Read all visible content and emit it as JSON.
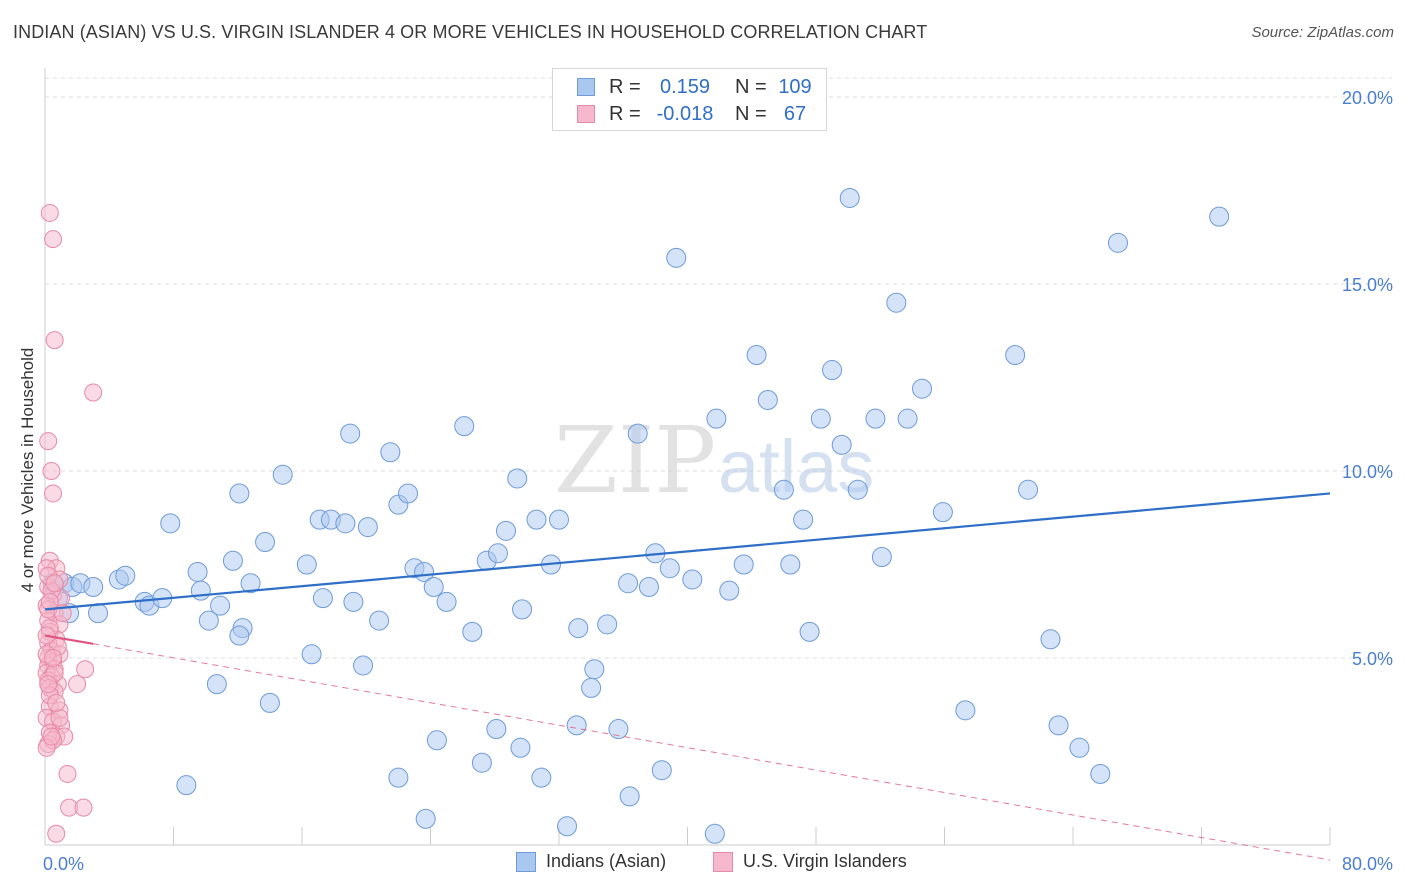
{
  "title": "INDIAN (ASIAN) VS U.S. VIRGIN ISLANDER 4 OR MORE VEHICLES IN HOUSEHOLD CORRELATION CHART",
  "source": "Source: ZipAtlas.com",
  "watermark": {
    "zip": "ZIP",
    "atlas": "atlas"
  },
  "legend": {
    "rows": [
      {
        "r_label": "R =",
        "r_value": "0.159",
        "n_label": "N =",
        "n_value": "109",
        "color": "#a9c7ef",
        "border": "#6f9bd8"
      },
      {
        "r_label": "R =",
        "r_value": "-0.018",
        "n_label": "N =",
        "n_value": "67",
        "color": "#f6b8cc",
        "border": "#e78aa6"
      }
    ]
  },
  "bottom_legend": [
    {
      "label": "Indians (Asian)",
      "color": "#a9c7ef",
      "border": "#6f9bd8"
    },
    {
      "label": "U.S. Virgin Islanders",
      "color": "#f6b8cc",
      "border": "#e78aa6"
    }
  ],
  "chart_data": {
    "type": "scatter",
    "title": "INDIAN (ASIAN) VS U.S. VIRGIN ISLANDER 4 OR MORE VEHICLES IN HOUSEHOLD CORRELATION CHART",
    "xlabel": "",
    "ylabel": "4 or more Vehicles in Household",
    "xlim": [
      0,
      80
    ],
    "ylim": [
      0,
      20
    ],
    "x_tick_labels": [
      "0.0%",
      "80.0%"
    ],
    "y_tick_labels": [
      "5.0%",
      "10.0%",
      "15.0%",
      "20.0%"
    ],
    "y_ticks": [
      5,
      10,
      15,
      20
    ],
    "grid": true,
    "series": [
      {
        "name": "Indians (Asian)",
        "color": "#a9c7ef",
        "stroke": "#6f9bd8",
        "trend": {
          "x": [
            0,
            80
          ],
          "y": [
            6.3,
            9.4
          ],
          "color": "#2f6fc8",
          "style": "solid"
        },
        "points": [
          [
            0.5,
            7.0
          ],
          [
            0.8,
            6.6
          ],
          [
            1.2,
            7.0
          ],
          [
            1.5,
            6.2
          ],
          [
            1.7,
            6.9
          ],
          [
            2.2,
            7.0
          ],
          [
            3.0,
            6.9
          ],
          [
            3.3,
            6.2
          ],
          [
            4.6,
            7.1
          ],
          [
            5.0,
            7.2
          ],
          [
            6.2,
            6.5
          ],
          [
            6.5,
            6.4
          ],
          [
            7.3,
            6.6
          ],
          [
            7.8,
            8.6
          ],
          [
            9.5,
            7.3
          ],
          [
            9.7,
            6.8
          ],
          [
            10.2,
            6.0
          ],
          [
            10.9,
            6.4
          ],
          [
            11.7,
            7.6
          ],
          [
            12.1,
            9.4
          ],
          [
            12.3,
            5.8
          ],
          [
            12.8,
            7.0
          ],
          [
            13.7,
            8.1
          ],
          [
            14.8,
            9.9
          ],
          [
            16.3,
            7.5
          ],
          [
            17.1,
            8.7
          ],
          [
            17.3,
            6.6
          ],
          [
            17.8,
            8.7
          ],
          [
            18.7,
            8.6
          ],
          [
            19.0,
            11.0
          ],
          [
            19.2,
            6.5
          ],
          [
            20.1,
            8.5
          ],
          [
            20.8,
            6.0
          ],
          [
            21.5,
            10.5
          ],
          [
            22.0,
            9.1
          ],
          [
            22.6,
            9.4
          ],
          [
            23.0,
            7.4
          ],
          [
            23.6,
            7.3
          ],
          [
            24.2,
            6.9
          ],
          [
            25.0,
            6.5
          ],
          [
            26.1,
            11.2
          ],
          [
            26.6,
            5.7
          ],
          [
            27.5,
            7.6
          ],
          [
            28.2,
            7.8
          ],
          [
            28.7,
            8.4
          ],
          [
            29.4,
            9.8
          ],
          [
            29.7,
            6.3
          ],
          [
            30.6,
            8.7
          ],
          [
            31.5,
            7.5
          ],
          [
            32.0,
            8.7
          ],
          [
            33.2,
            5.8
          ],
          [
            34.2,
            4.7
          ],
          [
            35.0,
            5.9
          ],
          [
            35.7,
            3.1
          ],
          [
            36.3,
            7.0
          ],
          [
            36.9,
            11.0
          ],
          [
            37.6,
            6.9
          ],
          [
            38.0,
            7.8
          ],
          [
            38.9,
            7.4
          ],
          [
            39.3,
            15.7
          ],
          [
            40.3,
            7.1
          ],
          [
            41.8,
            11.4
          ],
          [
            42.6,
            6.8
          ],
          [
            43.5,
            7.5
          ],
          [
            44.3,
            13.1
          ],
          [
            45.0,
            11.9
          ],
          [
            46.0,
            9.5
          ],
          [
            46.4,
            7.5
          ],
          [
            47.2,
            8.7
          ],
          [
            47.6,
            5.7
          ],
          [
            48.3,
            11.4
          ],
          [
            49.0,
            12.7
          ],
          [
            49.6,
            10.7
          ],
          [
            50.1,
            17.3
          ],
          [
            50.6,
            9.5
          ],
          [
            51.7,
            11.4
          ],
          [
            52.1,
            7.7
          ],
          [
            53.0,
            14.5
          ],
          [
            53.7,
            11.4
          ],
          [
            54.6,
            12.2
          ],
          [
            55.9,
            8.9
          ],
          [
            57.3,
            3.6
          ],
          [
            60.4,
            13.1
          ],
          [
            61.2,
            9.5
          ],
          [
            62.6,
            5.5
          ],
          [
            63.1,
            3.2
          ],
          [
            64.4,
            2.6
          ],
          [
            65.7,
            1.9
          ],
          [
            66.8,
            16.1
          ],
          [
            73.1,
            16.8
          ],
          [
            8.8,
            1.6
          ],
          [
            10.7,
            4.3
          ],
          [
            12.1,
            5.6
          ],
          [
            14.0,
            3.8
          ],
          [
            16.6,
            5.1
          ],
          [
            19.8,
            4.8
          ],
          [
            22.0,
            1.8
          ],
          [
            23.7,
            0.7
          ],
          [
            24.4,
            2.8
          ],
          [
            27.2,
            2.2
          ],
          [
            28.1,
            3.1
          ],
          [
            29.6,
            2.6
          ],
          [
            30.9,
            1.8
          ],
          [
            32.5,
            0.5
          ],
          [
            33.1,
            3.2
          ],
          [
            34.0,
            4.2
          ],
          [
            36.4,
            1.3
          ],
          [
            38.4,
            2.0
          ],
          [
            41.7,
            0.3
          ]
        ]
      },
      {
        "name": "U.S. Virgin Islanders",
        "color": "#f6b8cc",
        "stroke": "#e78aa6",
        "trend": {
          "x": [
            0,
            3.0
          ],
          "y": [
            5.6,
            5.38
          ],
          "color": "#e0557f",
          "style": "solid",
          "dash_extension": {
            "x": [
              3.0,
              80
            ],
            "y": [
              5.38,
              -0.4
            ]
          }
        },
        "points": [
          [
            0.3,
            16.9
          ],
          [
            0.5,
            16.2
          ],
          [
            0.6,
            13.5
          ],
          [
            0.2,
            10.8
          ],
          [
            0.4,
            10.0
          ],
          [
            0.5,
            9.4
          ],
          [
            3.0,
            12.1
          ],
          [
            0.3,
            7.6
          ],
          [
            0.7,
            7.4
          ],
          [
            0.1,
            7.4
          ],
          [
            0.9,
            7.1
          ],
          [
            0.2,
            6.9
          ],
          [
            0.5,
            6.7
          ],
          [
            1.0,
            6.6
          ],
          [
            0.1,
            6.4
          ],
          [
            0.6,
            6.2
          ],
          [
            0.2,
            6.0
          ],
          [
            0.9,
            5.9
          ],
          [
            0.3,
            5.7
          ],
          [
            0.7,
            5.5
          ],
          [
            0.2,
            5.4
          ],
          [
            0.4,
            5.2
          ],
          [
            0.9,
            5.1
          ],
          [
            0.2,
            5.0
          ],
          [
            0.5,
            4.9
          ],
          [
            0.2,
            4.8
          ],
          [
            0.6,
            4.7
          ],
          [
            0.1,
            4.6
          ],
          [
            2.5,
            4.7
          ],
          [
            0.4,
            4.5
          ],
          [
            0.2,
            4.4
          ],
          [
            0.8,
            4.3
          ],
          [
            0.3,
            4.2
          ],
          [
            2.0,
            4.3
          ],
          [
            0.6,
            4.1
          ],
          [
            0.3,
            3.7
          ],
          [
            0.9,
            3.6
          ],
          [
            0.1,
            3.4
          ],
          [
            0.5,
            3.3
          ],
          [
            1.0,
            3.2
          ],
          [
            0.3,
            3.0
          ],
          [
            0.7,
            2.9
          ],
          [
            1.2,
            2.9
          ],
          [
            0.2,
            2.7
          ],
          [
            0.5,
            2.8
          ],
          [
            0.1,
            2.6
          ],
          [
            1.4,
            1.9
          ],
          [
            1.5,
            1.0
          ],
          [
            2.4,
            1.0
          ],
          [
            0.7,
            0.3
          ],
          [
            0.4,
            6.8
          ],
          [
            0.2,
            6.3
          ],
          [
            1.1,
            6.2
          ],
          [
            0.3,
            5.8
          ],
          [
            0.8,
            5.3
          ],
          [
            0.1,
            5.1
          ],
          [
            0.6,
            4.6
          ],
          [
            0.3,
            4.0
          ],
          [
            0.9,
            3.4
          ],
          [
            0.4,
            2.9
          ],
          [
            0.2,
            7.2
          ],
          [
            0.6,
            7.0
          ],
          [
            0.3,
            6.5
          ],
          [
            0.1,
            5.6
          ],
          [
            0.5,
            5.0
          ],
          [
            0.2,
            4.3
          ],
          [
            0.7,
            3.8
          ]
        ]
      }
    ]
  }
}
